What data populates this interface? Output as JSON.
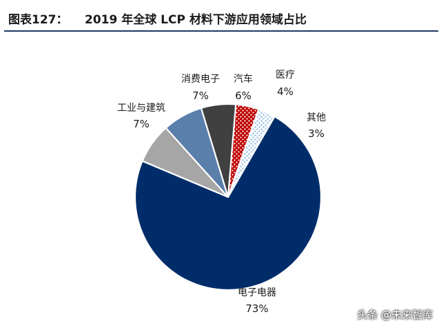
{
  "header": {
    "prefix": "图表127：",
    "title": "2019 年全球 LCP 材料下游应用领域占比"
  },
  "chart_data": {
    "type": "pie",
    "title": "2019 年全球 LCP 材料下游应用领域占比",
    "slices": [
      {
        "name": "电子电器",
        "value": 73,
        "label": "73%",
        "color": "#002d6a",
        "pattern": "solid"
      },
      {
        "name": "工业与建筑",
        "value": 7,
        "label": "7%",
        "color": "#a6a6a6",
        "pattern": "solid"
      },
      {
        "name": "消费电子",
        "value": 7,
        "label": "7%",
        "color": "#5b7fab",
        "pattern": "solid"
      },
      {
        "name": "汽车",
        "value": 6,
        "label": "6%",
        "color": "#404040",
        "pattern": "solid"
      },
      {
        "name": "医疗",
        "value": 4,
        "label": "4%",
        "color": "#c00000",
        "pattern": "dots-white"
      },
      {
        "name": "其他",
        "value": 3,
        "label": "3%",
        "color": "#ffffff",
        "pattern": "dots-lightblue"
      }
    ],
    "legend": "none"
  },
  "watermark": "头条 @未来智库"
}
